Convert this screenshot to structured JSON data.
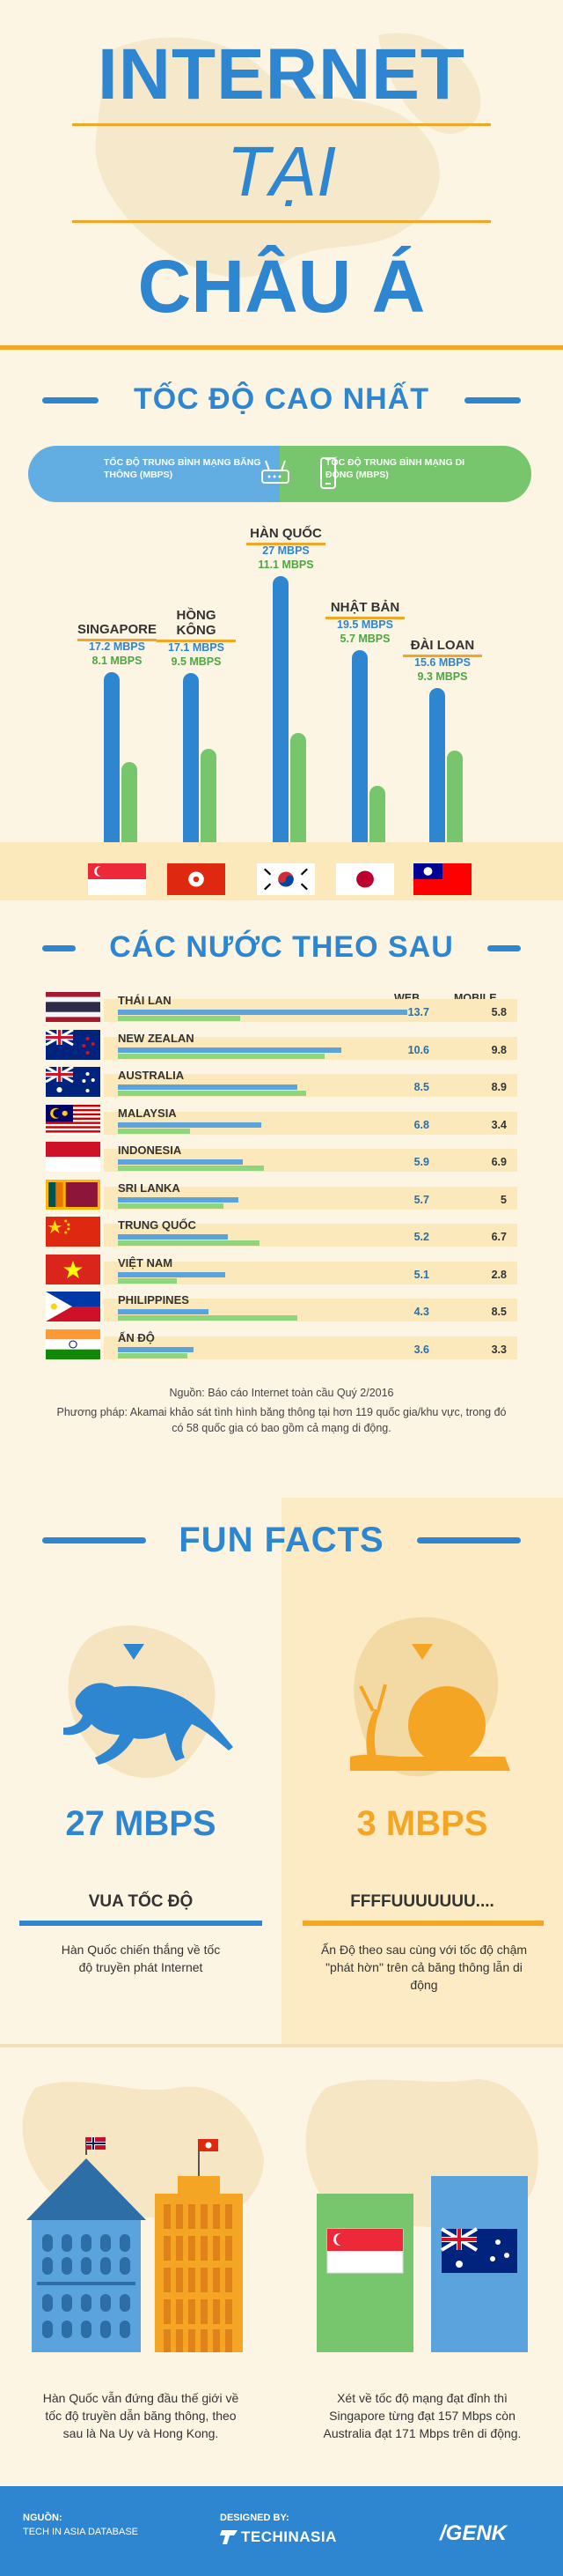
{
  "header": {
    "line1": "INTERNET",
    "line2": "TẠI",
    "line3": "CHÂU Á"
  },
  "top": {
    "title": "TỐC ĐỘ CAO NHẤT",
    "legend_broadband": "TỐC ĐỘ TRUNG BÌNH MẠNG BĂNG THÔNG (MBPS)",
    "legend_mobile": "TỐC ĐỘ TRUNG BÌNH MẠNG DI ĐỘNG (MBPS)",
    "countries": [
      {
        "name": "SINGAPORE",
        "web": "17.2 MBPS",
        "mobile": "8.1 MBPS"
      },
      {
        "name": "HỒNG KÔNG",
        "web": "17.1 MBPS",
        "mobile": "9.5 MBPS"
      },
      {
        "name": "HÀN QUỐC",
        "web": "27 MBPS",
        "mobile": "11.1 MBPS"
      },
      {
        "name": "NHẬT BẢN",
        "web": "19.5 MBPS",
        "mobile": "5.7 MBPS"
      },
      {
        "name": "ĐÀI LOAN",
        "web": "15.6 MBPS",
        "mobile": "9.3 MBPS"
      }
    ]
  },
  "chart_data": {
    "type": "bar",
    "categories": [
      "SINGAPORE",
      "HỒNG KÔNG",
      "HÀN QUỐC",
      "NHẬT BẢN",
      "ĐÀI LOAN"
    ],
    "series": [
      {
        "name": "TỐC ĐỘ TRUNG BÌNH MẠNG BĂNG THÔNG (MBPS)",
        "values": [
          17.2,
          17.1,
          27,
          19.5,
          15.6
        ]
      },
      {
        "name": "TỐC ĐỘ TRUNG BÌNH MẠNG DI ĐỘNG (MBPS)",
        "values": [
          8.1,
          9.5,
          11.1,
          5.7,
          9.3
        ]
      }
    ],
    "colors": [
      "#2d86cf",
      "#77c56d"
    ]
  },
  "follow": {
    "title": "CÁC NƯỚC THEO SAU",
    "col_web": "WEB",
    "col_mobile": "MOBILE",
    "rows": [
      {
        "name": "THÁI LAN",
        "web": "13.7",
        "mobile": "5.8",
        "web_v": 13.7,
        "mob_v": 5.8
      },
      {
        "name": "NEW ZEALAN",
        "web": "10.6",
        "mobile": "9.8",
        "web_v": 10.6,
        "mob_v": 9.8
      },
      {
        "name": "AUSTRALIA",
        "web": "8.5",
        "mobile": "8.9",
        "web_v": 8.5,
        "mob_v": 8.9
      },
      {
        "name": "MALAYSIA",
        "web": "6.8",
        "mobile": "3.4",
        "web_v": 6.8,
        "mob_v": 3.4
      },
      {
        "name": "INDONESIA",
        "web": "5.9",
        "mobile": "6.9",
        "web_v": 5.9,
        "mob_v": 6.9
      },
      {
        "name": "SRI LANKA",
        "web": "5.7",
        "mobile": "5",
        "web_v": 5.7,
        "mob_v": 5
      },
      {
        "name": "TRUNG QUỐC",
        "web": "5.2",
        "mobile": "6.7",
        "web_v": 5.2,
        "mob_v": 6.7
      },
      {
        "name": "VIỆT NAM",
        "web": "5.1",
        "mobile": "2.8",
        "web_v": 5.1,
        "mob_v": 2.8
      },
      {
        "name": "PHILIPPINES",
        "web": "4.3",
        "mobile": "8.5",
        "web_v": 4.3,
        "mob_v": 8.5
      },
      {
        "name": "ẤN ĐỘ",
        "web": "3.6",
        "mobile": "3.3",
        "web_v": 3.6,
        "mob_v": 3.3
      }
    ],
    "source": "Nguồn: Báo cáo Internet toàn cầu Quý 2/2016",
    "method": "Phương pháp: Akamai khảo sát tình hình băng thông tại hơn 119 quốc gia/khu vực, trong đó có 58 quốc gia có bao gồm cả mạng di động."
  },
  "fun": {
    "title": "FUN FACTS",
    "left_value": "27 MBPS",
    "left_label": "VUA TỐC ĐỘ",
    "left_desc": "Hàn Quốc chiến thắng về tốc độ truyền phát Internet",
    "right_value": "3 MBPS",
    "right_label": "FFFFUUUUUUU....",
    "right_desc": "Ấn Độ theo sau cùng với tốc độ chậm \"phát hờn\" trên cả băng thông lẫn di động",
    "bottom_left": "Hàn Quốc vẫn đứng đầu thế giới về tốc độ truyền dẫn băng thông, theo sau là Na Uy và Hong Kong.",
    "bottom_right": "Xét về tốc độ mạng đạt đỉnh thì Singapore từng đạt 157 Mbps còn Australia đạt 171 Mbps trên di động."
  },
  "footer": {
    "source_label": "NGUỒN:",
    "source_value": "TECH IN ASIA DATABASE",
    "designed_label": "DESIGNED BY:",
    "designed_value": "TECHINASIA",
    "brand": "GENK"
  }
}
